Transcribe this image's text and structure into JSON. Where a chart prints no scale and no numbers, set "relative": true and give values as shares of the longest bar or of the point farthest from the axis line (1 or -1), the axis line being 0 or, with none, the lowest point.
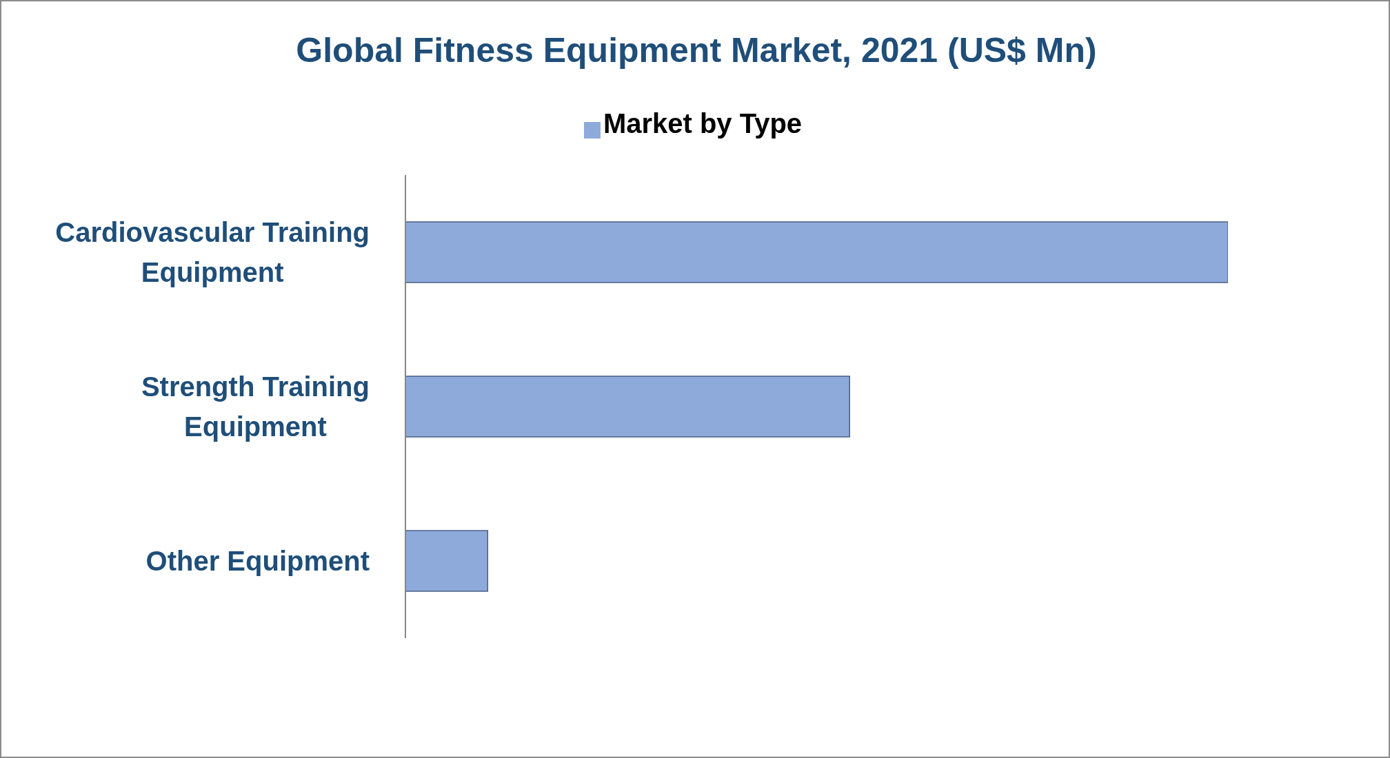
{
  "chart_data": {
    "type": "bar",
    "orientation": "horizontal",
    "relative": true,
    "title": "Global Fitness Equipment Market, 2021 (US$ Mn)",
    "categories": [
      "Cardiovascular Training Equipment",
      "Strength Training Equipment",
      "Other Equipment"
    ],
    "series": [
      {
        "name": "Market by Type",
        "color": "#8eaadb",
        "values": [
          1,
          0.54,
          0.1
        ]
      }
    ],
    "legend": "top"
  }
}
